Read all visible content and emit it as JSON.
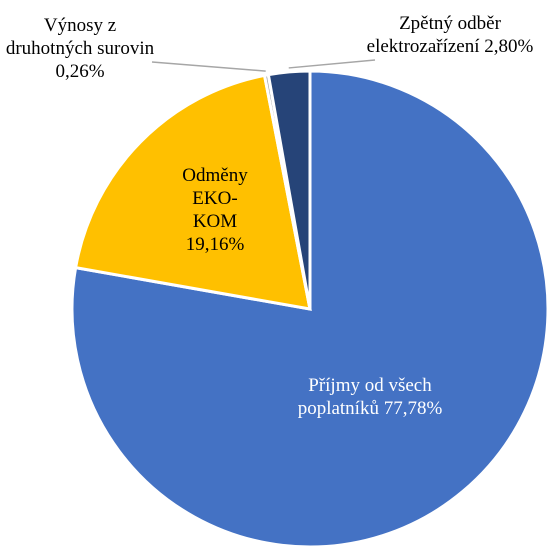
{
  "chart_data": {
    "type": "pie",
    "categories": [
      "Příjmy od všech poplatníků",
      "Odměny EKO-KOM",
      "Výnosy z druhotných surovin",
      "Zpětný odběr elektrozařízení"
    ],
    "values": [
      77.78,
      19.16,
      0.26,
      2.8
    ],
    "value_labels": [
      "77,78%",
      "19,16%",
      "0,26%",
      "2,80%"
    ],
    "colors": [
      "#4472c4",
      "#ffc000",
      "#a5a5a5",
      "#264478"
    ]
  }
}
